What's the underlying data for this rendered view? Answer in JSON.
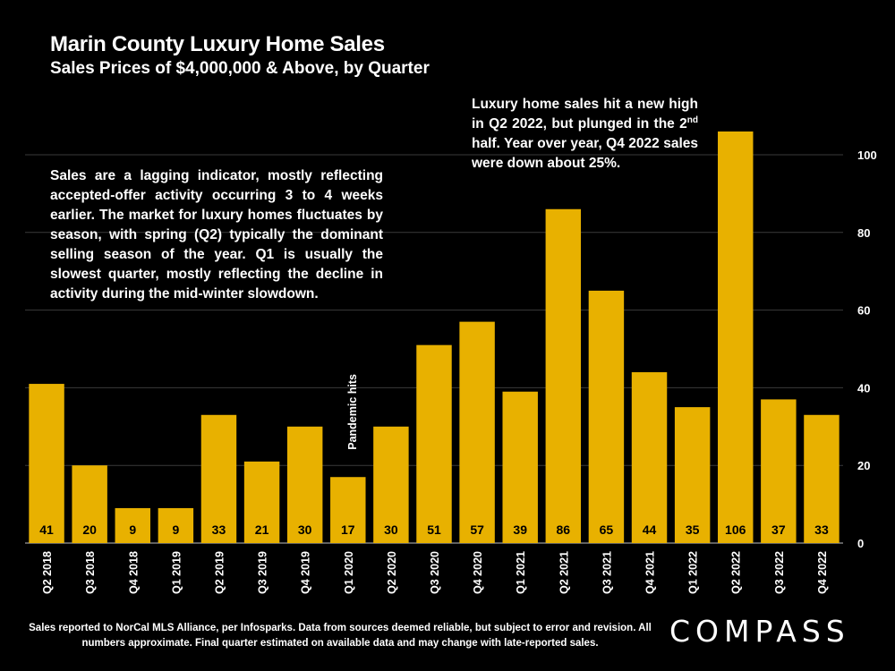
{
  "title": "Marin County Luxury Home Sales",
  "subtitle": "Sales Prices of $4,000,000 & Above, by Quarter",
  "note_left": "Sales are a lagging indicator, mostly reflecting accepted-offer activity occurring 3 to 4 weeks earlier. The market for luxury homes fluctuates by season, with spring (Q2) typically the dominant selling season of the year. Q1 is usually the slowest quarter, mostly reflecting the decline in activity during the mid-winter slowdown.",
  "note_right": {
    "part1": "Luxury home sales hit a new high in Q2 2022, but plunged in the 2",
    "sup": "nd",
    "part2": " half. Year over year, Q4 2022 sales were down about 25%."
  },
  "footer": "Sales reported to NorCal MLS Alliance, per Infosparks. Data from sources deemed reliable, but subject to error and revision. All numbers approximate. Final quarter estimated on available data and may change with late-reported sales.",
  "logo": "COMPASS",
  "colors": {
    "bar": "#E8B100",
    "background": "#000000",
    "grid": "#3a3a3a",
    "text": "#ffffff"
  },
  "chart_data": {
    "type": "bar",
    "title": "Marin County Luxury Home Sales",
    "subtitle": "Sales Prices of $4,000,000 & Above, by Quarter",
    "categories": [
      "Q2 2018",
      "Q3 2018",
      "Q4 2018",
      "Q1 2019",
      "Q2 2019",
      "Q3 2019",
      "Q4 2019",
      "Q1 2020",
      "Q2 2020",
      "Q3 2020",
      "Q4 2020",
      "Q1 2021",
      "Q2 2021",
      "Q3 2021",
      "Q4 2021",
      "Q1 2022",
      "Q2 2022",
      "Q3 2022",
      "Q4 2022"
    ],
    "values": [
      41,
      20,
      9,
      9,
      33,
      21,
      30,
      17,
      30,
      51,
      57,
      39,
      86,
      65,
      44,
      35,
      106,
      37,
      33
    ],
    "xlabel": "",
    "ylabel": "",
    "ylim": [
      0,
      110
    ],
    "yticks": [
      0,
      20,
      40,
      60,
      80,
      100
    ],
    "y_axis_side": "right",
    "grid": true,
    "annotations": [
      {
        "text": "Pandemic hits",
        "category": "Q1 2020",
        "orientation": "vertical"
      }
    ]
  }
}
